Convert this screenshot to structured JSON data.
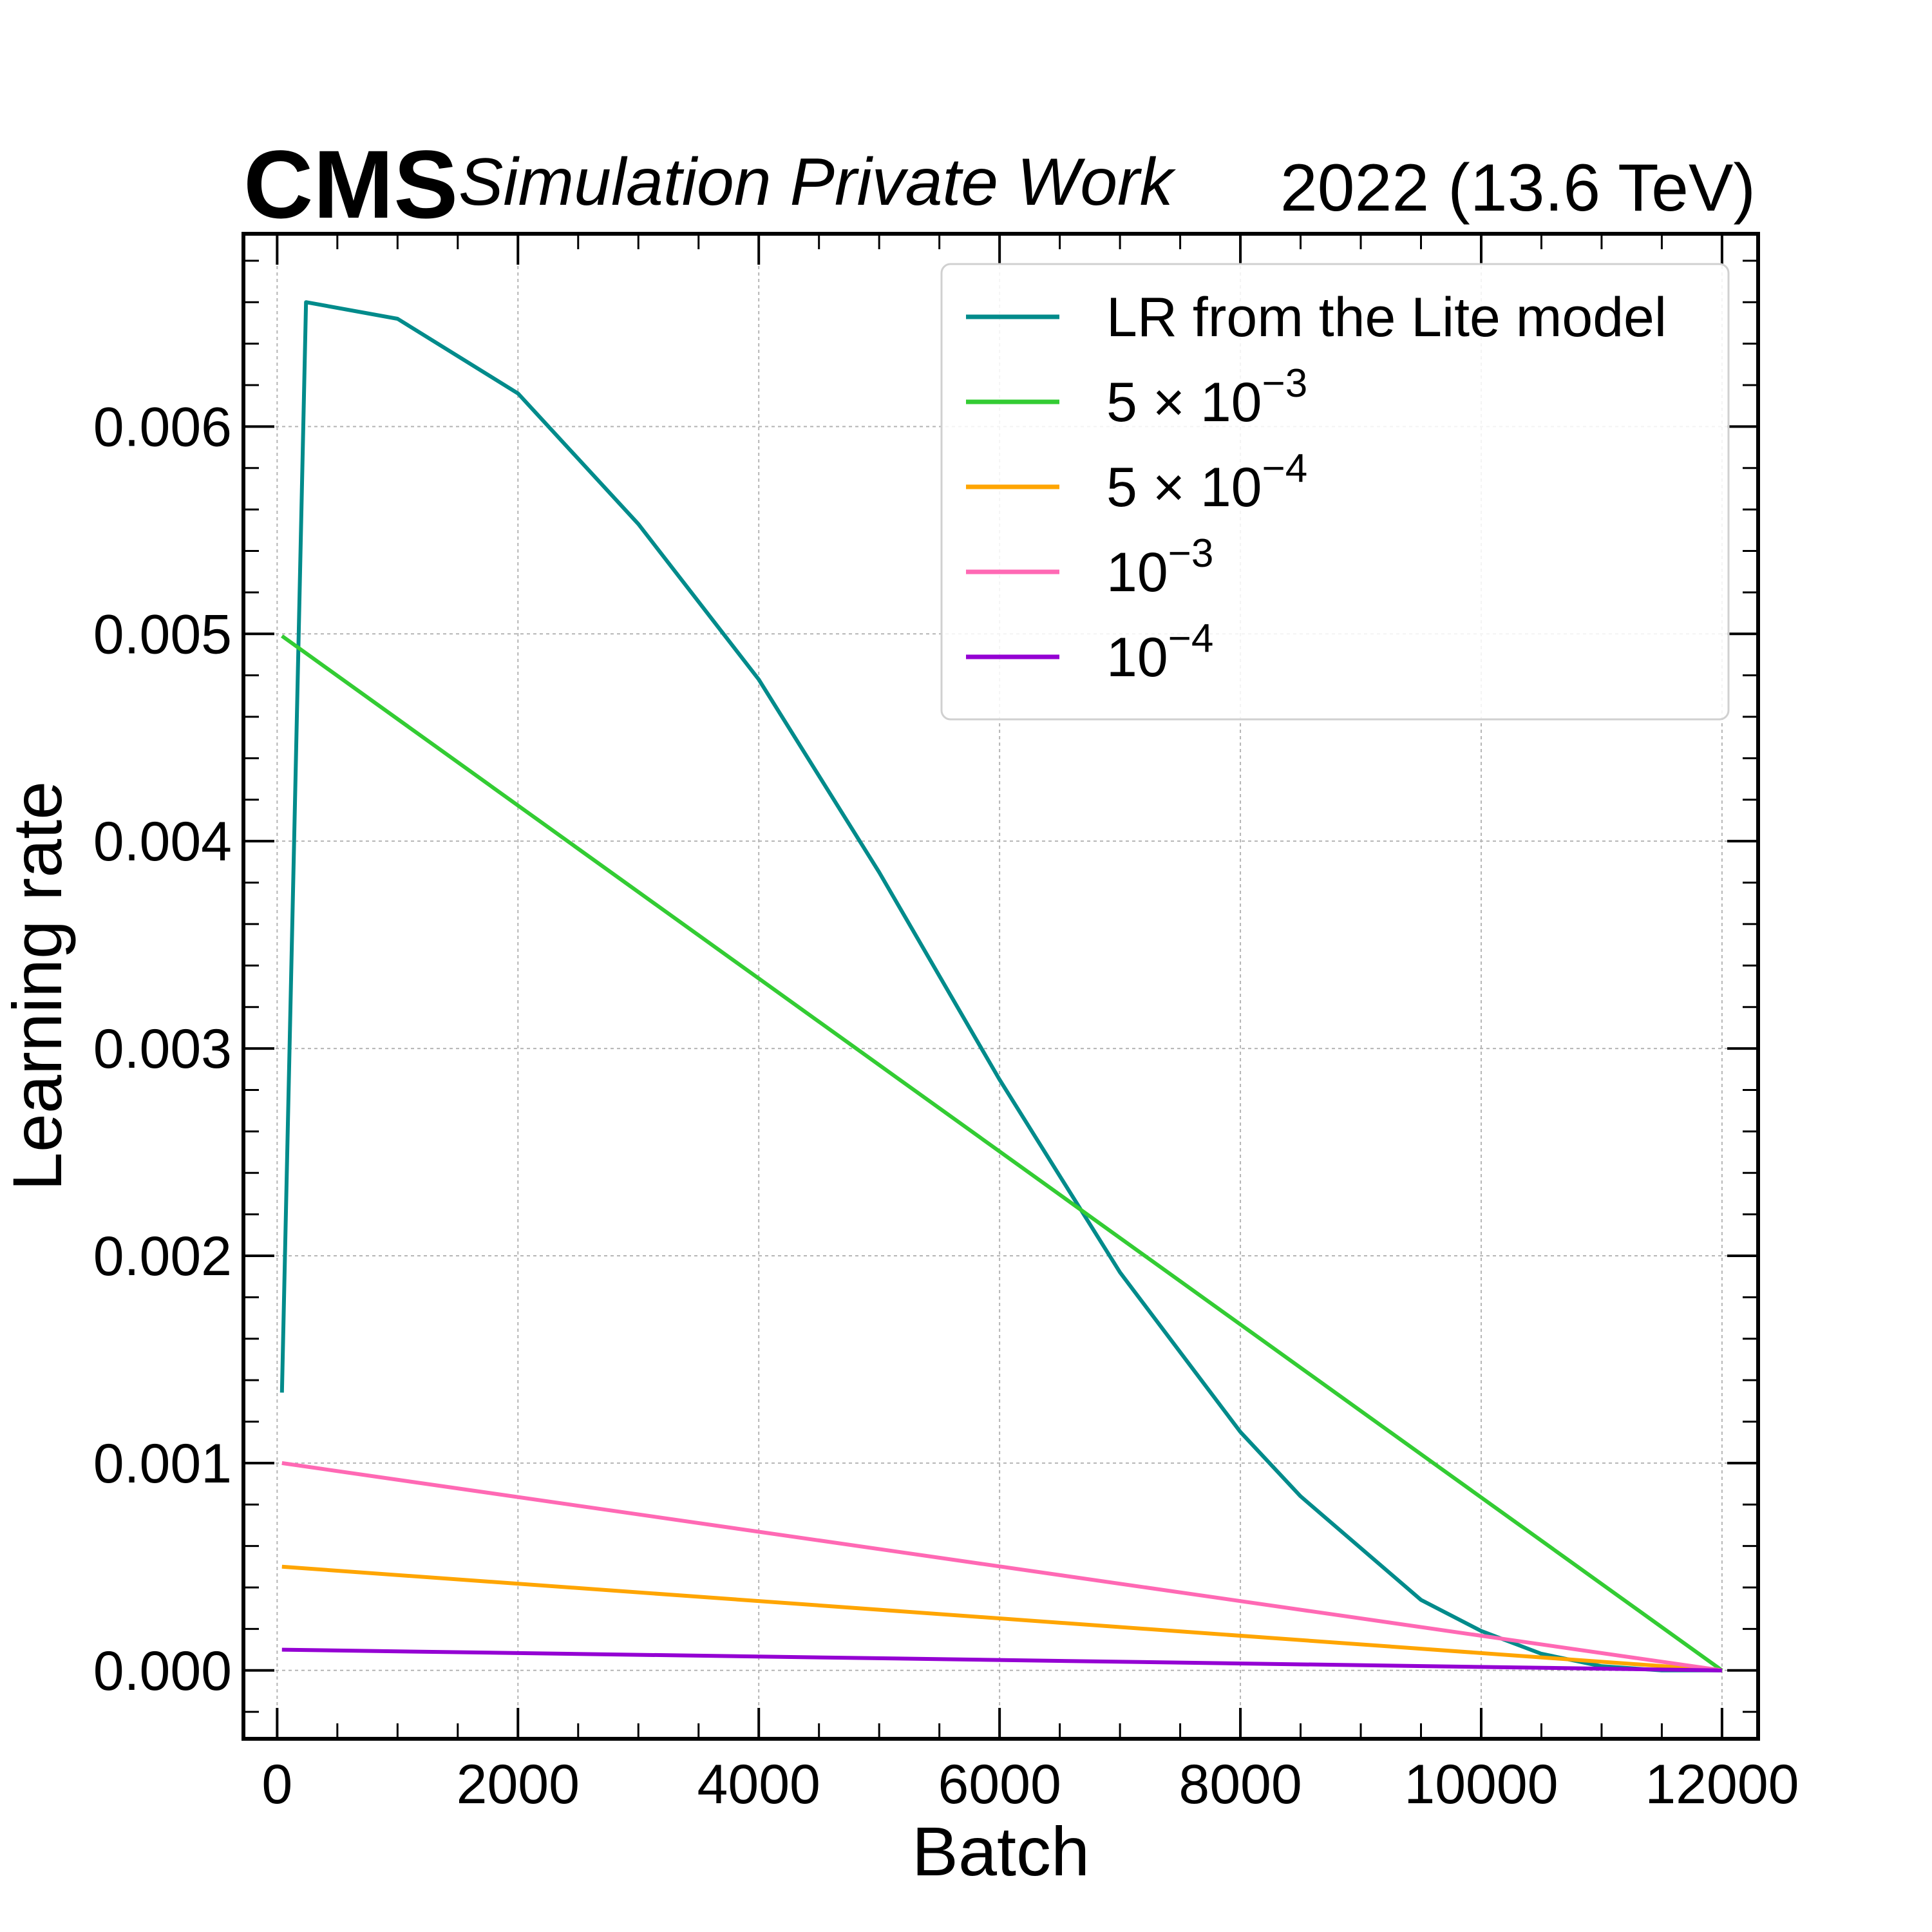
{
  "header": {
    "experiment": "CMS",
    "status": "Simulation Private Work",
    "lumi": "2022 (13.6 TeV)"
  },
  "chart_data": {
    "type": "line",
    "xlabel": "Batch",
    "ylabel": "Learning rate",
    "xlim": [
      -280,
      12300
    ],
    "ylim": [
      -0.00033,
      0.00693
    ],
    "x_ticks": [
      0,
      2000,
      4000,
      6000,
      8000,
      10000,
      12000
    ],
    "x_tick_labels": [
      "0",
      "2000",
      "4000",
      "6000",
      "8000",
      "10000",
      "12000"
    ],
    "y_ticks": [
      0.0,
      0.001,
      0.002,
      0.003,
      0.004,
      0.005,
      0.006
    ],
    "y_tick_labels": [
      "0.000",
      "0.001",
      "0.002",
      "0.003",
      "0.004",
      "0.005",
      "0.006"
    ],
    "grid": true,
    "legend_position": "top-right",
    "series": [
      {
        "name": "LR from the Lite model",
        "legend_base": "LR from the Lite model",
        "legend_sup": "",
        "color": "#008b8b",
        "x": [
          40,
          240,
          1000,
          2000,
          3000,
          4000,
          5000,
          6000,
          7000,
          8000,
          8500,
          9000,
          9500,
          10000,
          10500,
          11000,
          11500,
          12000
        ],
        "y": [
          0.00134,
          0.0066,
          0.00652,
          0.00616,
          0.00553,
          0.00478,
          0.00385,
          0.00285,
          0.00192,
          0.00115,
          0.00084,
          0.00059,
          0.00034,
          0.00019,
          8e-05,
          2e-05,
          0.0,
          0.0
        ]
      },
      {
        "name": "5 × 10^-3",
        "legend_base": "5 × 10",
        "legend_sup": "−3",
        "color": "#33cc33",
        "x": [
          40,
          12000
        ],
        "y": [
          0.00499,
          0.0
        ]
      },
      {
        "name": "5 × 10^-4",
        "legend_base": "5 × 10",
        "legend_sup": "−4",
        "color": "#ffa500",
        "x": [
          40,
          12000
        ],
        "y": [
          0.0005,
          0.0
        ]
      },
      {
        "name": "10^-3",
        "legend_base": "10",
        "legend_sup": "−3",
        "color": "#ff69b4",
        "x": [
          40,
          12000
        ],
        "y": [
          0.001,
          0.0
        ]
      },
      {
        "name": "10^-4",
        "legend_base": "10",
        "legend_sup": "−4",
        "color": "#9400d3",
        "x": [
          40,
          12000
        ],
        "y": [
          0.0001,
          0.0
        ]
      }
    ]
  }
}
